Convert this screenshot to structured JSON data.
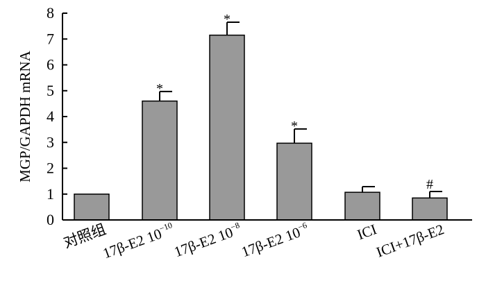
{
  "chart_data": {
    "type": "bar",
    "ylabel": "MGP/GAPDH mRNA",
    "xlabel": "",
    "title": "",
    "ylim": [
      0,
      8
    ],
    "yticks": [
      "0",
      "1",
      "2",
      "3",
      "4",
      "5",
      "6",
      "7",
      "8"
    ],
    "bar_color": "#999999",
    "categories": [
      {
        "base": "对照组",
        "sup": ""
      },
      {
        "base": "17β-E2 10",
        "sup": "−10"
      },
      {
        "base": "17β-E2 10",
        "sup": "−8"
      },
      {
        "base": "17β-E2 10",
        "sup": "−6"
      },
      {
        "base": "ICI",
        "sup": ""
      },
      {
        "base": "ICI+17β-E2",
        "sup": ""
      }
    ],
    "values": [
      1.0,
      4.6,
      7.15,
      2.97,
      1.07,
      0.85
    ],
    "errors": [
      0,
      0.37,
      0.5,
      0.55,
      0.22,
      0.25
    ],
    "significance": [
      "",
      "*",
      "*",
      "*",
      "",
      "#"
    ]
  }
}
